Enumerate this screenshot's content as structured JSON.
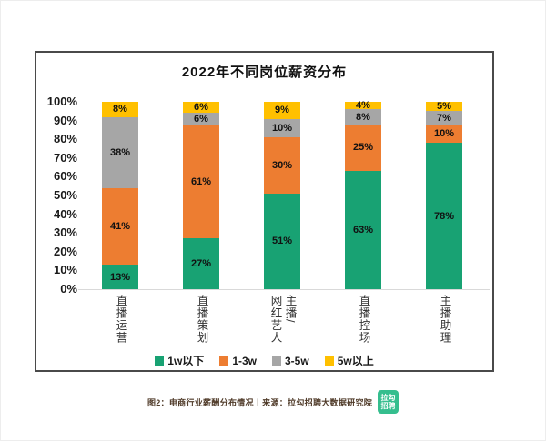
{
  "title": "2022年不同岗位薪资分布",
  "chart_data": {
    "type": "bar",
    "stacked": true,
    "title": "2022年不同岗位薪资分布",
    "categories": [
      "直播运营",
      "直播策划",
      "主播/网红艺人",
      "直播控场",
      "主播助理"
    ],
    "category_lines": [
      [
        "直播运营"
      ],
      [
        "直播策划"
      ],
      [
        "主播/",
        "网红艺人"
      ],
      [
        "直播控场"
      ],
      [
        "主播助理"
      ]
    ],
    "series": [
      {
        "name": "1w以下",
        "color": "#18A273",
        "values": [
          13,
          27,
          51,
          63,
          78
        ]
      },
      {
        "name": "1-3w",
        "color": "#ED7D31",
        "values": [
          41,
          61,
          30,
          25,
          10
        ]
      },
      {
        "name": "3-5w",
        "color": "#A6A6A6",
        "values": [
          38,
          6,
          10,
          8,
          7
        ]
      },
      {
        "name": "5w以上",
        "color": "#FFC000",
        "values": [
          8,
          6,
          9,
          4,
          5
        ]
      }
    ],
    "value_suffix": "%",
    "y_ticks": [
      "0%",
      "10%",
      "20%",
      "30%",
      "40%",
      "50%",
      "60%",
      "70%",
      "80%",
      "90%",
      "100%"
    ],
    "ylim": [
      0,
      100
    ],
    "grid": false,
    "legend_position": "bottom",
    "axis_color": "#d9d9d9"
  },
  "caption": {
    "text": "图2：电商行业薪酬分布情况丨来源：拉勾招聘大数据研究院",
    "logo_lines": [
      "拉勾",
      "招聘"
    ],
    "logo_color": "#35BE8E"
  }
}
